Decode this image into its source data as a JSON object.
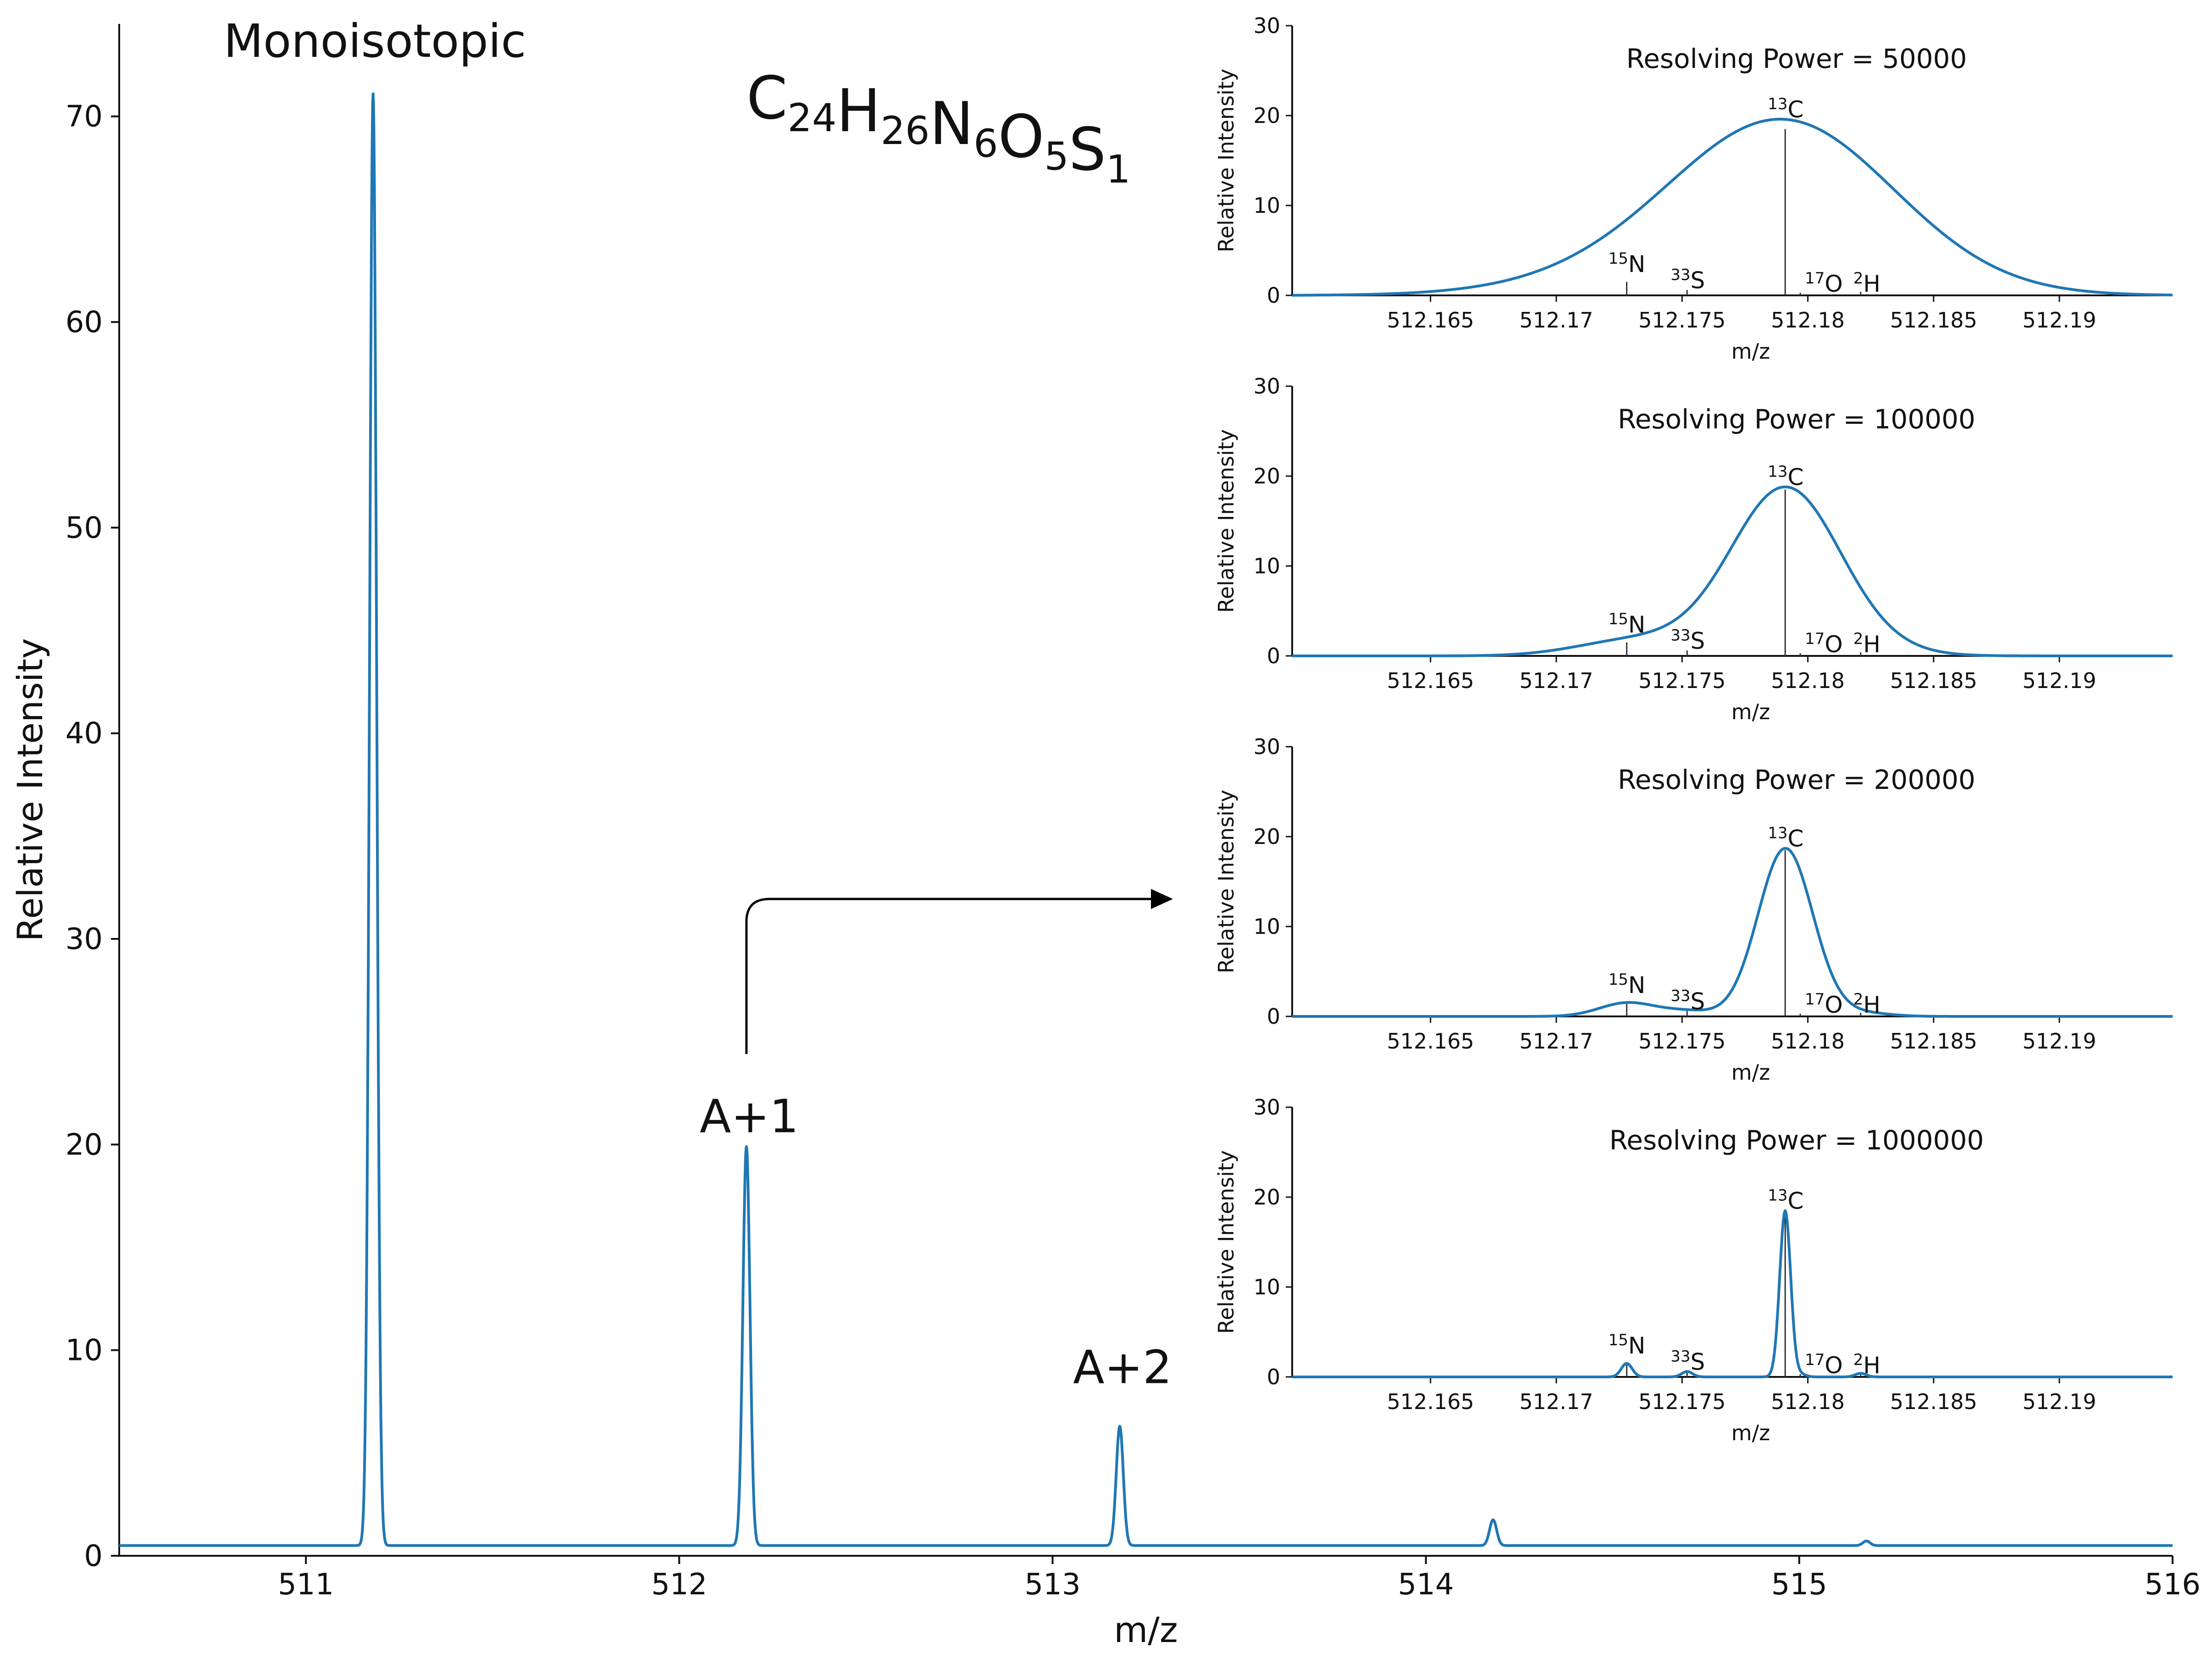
{
  "chart_data": [
    {
      "type": "line",
      "xlabel": "m/z",
      "ylabel": "Relative Intensity",
      "xlim": [
        510.5,
        516
      ],
      "ylim": [
        0,
        74.5
      ],
      "xticks": [
        511,
        512,
        513,
        514,
        515,
        516
      ],
      "yticks": [
        0,
        10,
        20,
        30,
        40,
        50,
        60,
        70
      ],
      "baseline": 0.5,
      "series": [
        {
          "peaks": [
            {
              "x": 511.18,
              "y": 71.1
            },
            {
              "x": 512.18,
              "y": 19.9
            },
            {
              "x": 513.18,
              "y": 6.3
            },
            {
              "x": 514.18,
              "y": 1.75
            },
            {
              "x": 515.18,
              "y": 0.72
            }
          ]
        }
      ],
      "annotations": [
        {
          "text": "Monoisotopic",
          "x": 511.18,
          "y": 74.5
        },
        {
          "text": "A+1",
          "x": 512.18,
          "y": 22.2
        },
        {
          "text": "A+2",
          "x": 513.18,
          "y": 10.0
        }
      ],
      "formula": {
        "parts": [
          {
            "t": "C",
            "s": "24"
          },
          {
            "t": "H",
            "s": "26"
          },
          {
            "t": "N",
            "s": "6"
          },
          {
            "t": "O",
            "s": "5"
          },
          {
            "t": "S",
            "s": "1"
          }
        ]
      }
    },
    {
      "type": "line",
      "title": "Resolving Power = 50000",
      "resolving_power": 50000,
      "xlabel": "m/z",
      "ylabel": "Relative Intensity",
      "xlim": [
        512.1595,
        512.1945
      ],
      "ylim": [
        0,
        30
      ],
      "xticks": [
        "512.165",
        "512.17",
        "512.175",
        "512.18",
        "512.185",
        "512.19"
      ],
      "yticks": [
        0,
        10,
        20,
        30
      ],
      "peak_center": 512.1788,
      "peak_height": 19.6
    },
    {
      "type": "line",
      "title": "Resolving Power = 100000",
      "resolving_power": 100000,
      "xlabel": "m/z",
      "ylabel": "Relative Intensity",
      "xlim": [
        512.1595,
        512.1945
      ],
      "ylim": [
        0,
        30
      ],
      "xticks": [
        "512.165",
        "512.17",
        "512.175",
        "512.18",
        "512.185",
        "512.19"
      ],
      "yticks": [
        0,
        10,
        20,
        30
      ],
      "peak_center": 512.1791,
      "peak_height": 18.8
    },
    {
      "type": "line",
      "title": "Resolving Power = 200000",
      "resolving_power": 200000,
      "xlabel": "m/z",
      "ylabel": "Relative Intensity",
      "xlim": [
        512.1595,
        512.1945
      ],
      "ylim": [
        0,
        30
      ],
      "xticks": [
        "512.165",
        "512.17",
        "512.175",
        "512.18",
        "512.185",
        "512.19"
      ],
      "yticks": [
        0,
        10,
        20,
        30
      ],
      "peak_center": 512.1791,
      "peak_height": 18.7
    },
    {
      "type": "line",
      "title": "Resolving Power = 1000000",
      "resolving_power": 1000000,
      "xlabel": "m/z",
      "ylabel": "Relative Intensity",
      "xlim": [
        512.1595,
        512.1945
      ],
      "ylim": [
        0,
        30
      ],
      "xticks": [
        "512.165",
        "512.17",
        "512.175",
        "512.18",
        "512.185",
        "512.19"
      ],
      "yticks": [
        0,
        10,
        20,
        30
      ],
      "peak_center": 512.1791,
      "peak_height": 18.5
    }
  ],
  "isotopes": [
    {
      "sup": "15",
      "el": "N",
      "mz": 512.1728,
      "height": 1.5
    },
    {
      "sup": "33",
      "el": "S",
      "mz": 512.1752,
      "height": 0.6
    },
    {
      "sup": "13",
      "el": "C",
      "mz": 512.1791,
      "height": 18.5
    },
    {
      "sup": "17",
      "el": "O",
      "mz": 512.1797,
      "height": 0.3
    },
    {
      "sup": "2",
      "el": "H",
      "mz": 512.1821,
      "height": 0.4
    }
  ],
  "colors": {
    "series": "#1f77b4",
    "stick": "#333333",
    "axis": "#111111"
  },
  "arrow_icon": "right-arrow-icon"
}
